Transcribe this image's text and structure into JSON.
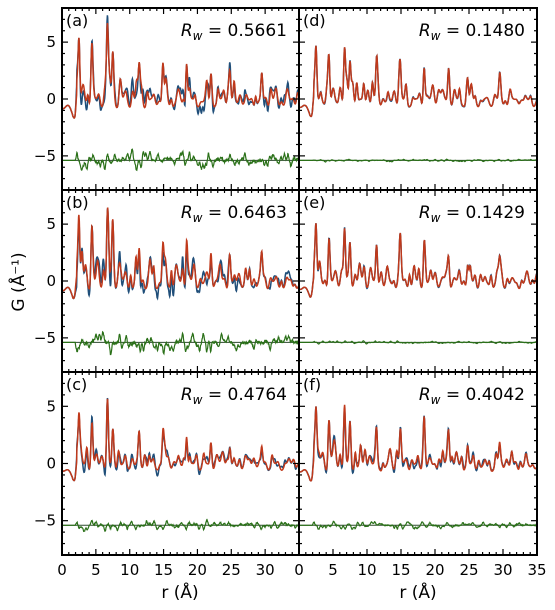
{
  "chart_data": {
    "type": "line",
    "xlabel": "r (Å)",
    "ylabel": "G (Å⁻¹)",
    "xlim": [
      0,
      35
    ],
    "ylim": [
      -8,
      8
    ],
    "xticks": [
      "0",
      "5",
      "10",
      "15",
      "20",
      "25",
      "30",
      "35"
    ],
    "yticks": [
      "−5",
      "0",
      "5"
    ],
    "colors": {
      "observed": "#1f4e79",
      "calculated": "#c0391b",
      "difference": "#2a7018",
      "baseline": "#2e4a2e"
    },
    "difference_offset": -5.4,
    "panels": [
      {
        "id": "a",
        "label": "(a)",
        "rw_prefix": "R",
        "rw_sub": "w",
        "rw_value": " = 0.5661",
        "peak_scale": 1.0,
        "diff_amp": 1.25,
        "mismatch": 0.9
      },
      {
        "id": "b",
        "label": "(b)",
        "rw_prefix": "R",
        "rw_sub": "w",
        "rw_value": " = 0.6463",
        "peak_scale": 1.0,
        "diff_amp": 1.35,
        "mismatch": 1.0
      },
      {
        "id": "c",
        "label": "(c)",
        "rw_prefix": "R",
        "rw_sub": "w",
        "rw_value": " = 0.4764",
        "peak_scale": 0.75,
        "diff_amp": 0.7,
        "mismatch": 0.55
      },
      {
        "id": "d",
        "label": "(d)",
        "rw_prefix": "R",
        "rw_sub": "w",
        "rw_value": " = 0.1480",
        "peak_scale": 0.85,
        "diff_amp": 0.18,
        "mismatch": 0.1
      },
      {
        "id": "e",
        "label": "(e)",
        "rw_prefix": "R",
        "rw_sub": "w",
        "rw_value": " = 0.1429",
        "peak_scale": 0.85,
        "diff_amp": 0.18,
        "mismatch": 0.1
      },
      {
        "id": "f",
        "label": "(f)",
        "rw_prefix": "R",
        "rw_sub": "w",
        "rw_value": " = 0.4042",
        "peak_scale": 0.85,
        "diff_amp": 0.5,
        "mismatch": 0.35
      }
    ],
    "main_peaks": [
      {
        "r": 2.5,
        "g": 5.6
      },
      {
        "r": 4.4,
        "g": 4.2
      },
      {
        "r": 6.7,
        "g": 5.5
      },
      {
        "r": 7.5,
        "g": 4.0
      },
      {
        "r": 11.4,
        "g": 3.0
      },
      {
        "r": 14.9,
        "g": 3.3
      },
      {
        "r": 18.4,
        "g": 3.8
      },
      {
        "r": 22.0,
        "g": 2.6
      },
      {
        "r": 24.8,
        "g": 2.0
      },
      {
        "r": 29.5,
        "g": 2.0
      }
    ],
    "grid": false
  }
}
